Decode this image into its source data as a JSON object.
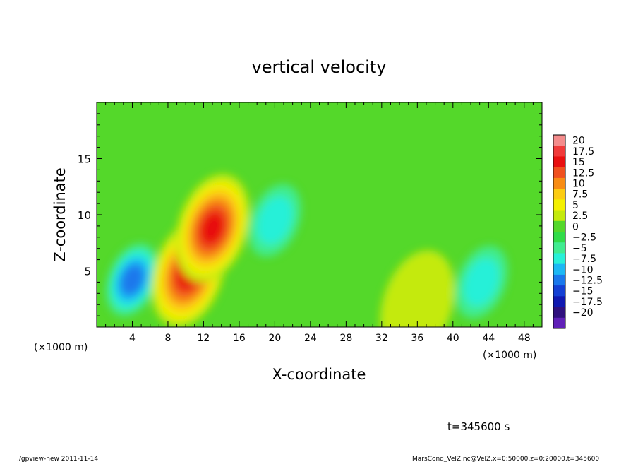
{
  "chart_data": {
    "type": "heatmap",
    "title": "vertical velocity",
    "xlabel": "X-coordinate",
    "ylabel": "Z-coordinate",
    "x_unit": "(×1000 m)",
    "y_unit": "(×1000 m)",
    "xlim": [
      0,
      50
    ],
    "ylim": [
      0,
      20
    ],
    "x_ticks": [
      4,
      8,
      12,
      16,
      20,
      24,
      28,
      32,
      36,
      40,
      44,
      48
    ],
    "y_ticks": [
      5,
      10,
      15
    ],
    "colorbar": {
      "levels": [
        20,
        17.5,
        15,
        12.5,
        10,
        7.5,
        5,
        2.5,
        0,
        -2.5,
        -5,
        -7.5,
        -10,
        -12.5,
        -15,
        -17.5,
        -20
      ],
      "colors": [
        "#f48c8c",
        "#f03a3a",
        "#e80f0f",
        "#f0501e",
        "#f88c14",
        "#fccc12",
        "#f4f000",
        "#c4ea0c",
        "#54d82a",
        "#30dc48",
        "#40ec90",
        "#28f0d8",
        "#1cb8f4",
        "#1a78ec",
        "#1440d4",
        "#1018b0",
        "#30107e",
        "#6020b8"
      ]
    },
    "field": {
      "background": 0.2,
      "features": [
        {
          "x": 4.0,
          "z": 4.2,
          "value": -12
        },
        {
          "x": 10.3,
          "z": 4.8,
          "value": 15
        },
        {
          "x": 13.0,
          "z": 8.8,
          "value": 15.5
        },
        {
          "x": 20.0,
          "z": 9.5,
          "value": -5
        },
        {
          "x": 30.5,
          "z": 10.5,
          "value": 2
        },
        {
          "x": 43.2,
          "z": 4.0,
          "value": -6
        },
        {
          "x": 36.0,
          "z": 2.0,
          "value": 3
        }
      ]
    },
    "time_label": "t=345600 s",
    "footer_left": "./gpview-new  2011-11-14",
    "footer_right": "MarsCond_VelZ.nc@VelZ,x=0:50000,z=0:20000,t=345600"
  }
}
